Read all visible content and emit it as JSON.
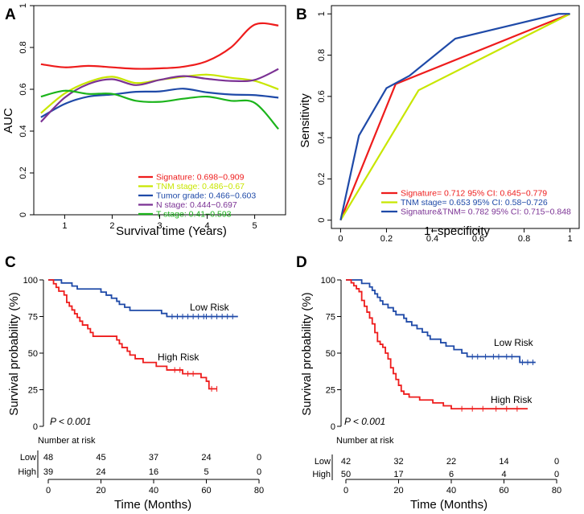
{
  "panels": {
    "A": {
      "letter": "A"
    },
    "B": {
      "letter": "B"
    },
    "C": {
      "letter": "C"
    },
    "D": {
      "letter": "D"
    }
  },
  "chart_data": [
    {
      "id": "A",
      "type": "line",
      "title": "",
      "xlabel": "Survival time (Years)",
      "ylabel": "AUC",
      "xlim": [
        0.35,
        5.65
      ],
      "ylim": [
        0.0,
        1.0
      ],
      "xticks": [
        1,
        2,
        3,
        4,
        5
      ],
      "yticks": [
        0.0,
        0.2,
        0.4,
        0.6,
        0.8,
        1.0
      ],
      "legend_position": "bottom-right",
      "x": [
        0.5,
        1.0,
        1.5,
        2.0,
        2.5,
        3.0,
        3.5,
        4.0,
        4.5,
        5.0,
        5.5
      ],
      "series": [
        {
          "name": "Signature",
          "legend": "Signature: 0.698−0.909",
          "color": "#ee1c1c",
          "values": [
            0.72,
            0.705,
            0.712,
            0.705,
            0.698,
            0.7,
            0.708,
            0.735,
            0.8,
            0.909,
            0.905
          ]
        },
        {
          "name": "TNM stage",
          "legend": "TNM stage: 0.486−0.67",
          "color": "#c8e600",
          "values": [
            0.486,
            0.58,
            0.635,
            0.66,
            0.63,
            0.645,
            0.66,
            0.67,
            0.655,
            0.64,
            0.6
          ]
        },
        {
          "name": "Tumor grade",
          "legend": "Tumor grade: 0.466−0.603",
          "color": "#1f4aa8",
          "values": [
            0.466,
            0.53,
            0.565,
            0.575,
            0.588,
            0.59,
            0.603,
            0.585,
            0.575,
            0.572,
            0.56
          ]
        },
        {
          "name": "N stage",
          "legend": "N stage: 0.444−0.697",
          "color": "#7b3294",
          "values": [
            0.444,
            0.56,
            0.625,
            0.648,
            0.62,
            0.645,
            0.663,
            0.65,
            0.64,
            0.645,
            0.697
          ]
        },
        {
          "name": "T stage",
          "legend": "T stage: 0.41−0.593",
          "color": "#1bb41b",
          "values": [
            0.565,
            0.593,
            0.578,
            0.578,
            0.545,
            0.54,
            0.555,
            0.565,
            0.545,
            0.535,
            0.41
          ]
        }
      ]
    },
    {
      "id": "B",
      "type": "line",
      "title": "",
      "xlabel": "1−specificity",
      "ylabel": "Sensitivity",
      "xlim": [
        -0.04,
        1.04
      ],
      "ylim": [
        -0.04,
        1.04
      ],
      "xticks": [
        0.0,
        0.2,
        0.4,
        0.6,
        0.8,
        1.0
      ],
      "yticks": [
        0.0,
        0.2,
        0.4,
        0.6,
        0.8,
        1.0
      ],
      "legend_position": "bottom-right",
      "series": [
        {
          "name": "Signature",
          "legend": "Signature= 0.712  95% CI: 0.645−0.779",
          "color": "#ee1c1c",
          "x": [
            0,
            0.24,
            1.0
          ],
          "y": [
            0,
            0.66,
            1.0
          ]
        },
        {
          "name": "TNM stage",
          "legend": "TNM stage= 0.653  95% CI: 0.58−0.726",
          "color": "#c8e600",
          "x": [
            0,
            0.34,
            1.0
          ],
          "y": [
            0,
            0.63,
            1.0
          ]
        },
        {
          "name": "Signature&TNM",
          "legend": "Signature&TNM= 0.782  95% CI: 0.715−0.848",
          "color": "#1f4aa8",
          "x": [
            0,
            0.08,
            0.2,
            0.3,
            0.5,
            0.95,
            1.0
          ],
          "y": [
            0,
            0.41,
            0.64,
            0.7,
            0.88,
            1.0,
            1.0
          ]
        }
      ],
      "legend_text_colors": [
        "#ee1c1c",
        "#1f4aa8",
        "#7b3294"
      ]
    },
    {
      "id": "C",
      "type": "line",
      "title": "",
      "xlabel": "Time (Months)",
      "ylabel": "Survival probability (%)",
      "xlim": [
        0,
        80
      ],
      "ylim": [
        0,
        100
      ],
      "xticks": [
        0,
        20,
        40,
        60,
        80
      ],
      "yticks": [
        0,
        25,
        50,
        75,
        100
      ],
      "pvalue": "P < 0.001",
      "series": [
        {
          "name": "Low Risk",
          "label": "Low Risk",
          "color": "#1f4aa8",
          "steps": [
            [
              0,
              100
            ],
            [
              5,
              97.9
            ],
            [
              9,
              95.8
            ],
            [
              11,
              93.8
            ],
            [
              20,
              91.7
            ],
            [
              22,
              89.6
            ],
            [
              24,
              87.5
            ],
            [
              26,
              85.4
            ],
            [
              27,
              83.3
            ],
            [
              29,
              81.3
            ],
            [
              31,
              79.2
            ],
            [
              43,
              77.1
            ],
            [
              45,
              75.0
            ],
            [
              72,
              75.0
            ]
          ],
          "censors": [
            47,
            49,
            51,
            53,
            55,
            57,
            59,
            60,
            62,
            64,
            66,
            68,
            70
          ]
        },
        {
          "name": "High Risk",
          "label": "High Risk",
          "color": "#ee1c1c",
          "steps": [
            [
              0,
              100
            ],
            [
              2,
              97.4
            ],
            [
              3,
              94.9
            ],
            [
              4,
              92.3
            ],
            [
              6,
              89.7
            ],
            [
              7,
              84.6
            ],
            [
              8,
              82.1
            ],
            [
              9,
              79.5
            ],
            [
              10,
              76.9
            ],
            [
              11,
              74.4
            ],
            [
              12,
              71.8
            ],
            [
              13,
              69.2
            ],
            [
              15,
              66.7
            ],
            [
              16,
              64.1
            ],
            [
              17,
              61.5
            ],
            [
              26,
              59.0
            ],
            [
              27,
              56.4
            ],
            [
              28,
              53.8
            ],
            [
              30,
              51.3
            ],
            [
              31,
              48.7
            ],
            [
              33,
              46.2
            ],
            [
              36,
              43.6
            ],
            [
              41,
              41.0
            ],
            [
              45,
              38.5
            ],
            [
              51,
              35.9
            ],
            [
              58,
              33.3
            ],
            [
              60,
              30.8
            ],
            [
              61,
              25.6
            ],
            [
              64,
              25.6
            ]
          ],
          "censors": [
            48,
            50,
            53,
            55,
            62,
            64
          ]
        }
      ],
      "risk_table": {
        "title": "Number at risk",
        "groups": [
          "Low",
          "High"
        ],
        "times": [
          0,
          20,
          40,
          60,
          80
        ],
        "counts": [
          [
            48,
            45,
            37,
            24,
            0
          ],
          [
            39,
            24,
            16,
            5,
            0
          ]
        ]
      }
    },
    {
      "id": "D",
      "type": "line",
      "title": "",
      "xlabel": "Time (Months)",
      "ylabel": "Survival probability (%)",
      "xlim": [
        0,
        80
      ],
      "ylim": [
        0,
        100
      ],
      "xticks": [
        0,
        20,
        40,
        60,
        80
      ],
      "yticks": [
        0,
        25,
        50,
        75,
        100
      ],
      "pvalue": "P < 0.001",
      "series": [
        {
          "name": "Low Risk",
          "label": "Low Risk",
          "color": "#1f4aa8",
          "steps": [
            [
              0,
              100
            ],
            [
              6,
              97.6
            ],
            [
              9,
              95.2
            ],
            [
              10,
              92.9
            ],
            [
              11,
              90.5
            ],
            [
              12,
              88.1
            ],
            [
              13,
              85.7
            ],
            [
              14,
              83.3
            ],
            [
              16,
              81.0
            ],
            [
              18,
              78.6
            ],
            [
              19,
              76.2
            ],
            [
              22,
              73.8
            ],
            [
              23,
              71.4
            ],
            [
              25,
              69.0
            ],
            [
              27,
              66.7
            ],
            [
              29,
              64.3
            ],
            [
              31,
              61.9
            ],
            [
              32,
              59.5
            ],
            [
              36,
              57.1
            ],
            [
              38,
              54.8
            ],
            [
              41,
              52.4
            ],
            [
              44,
              50.0
            ],
            [
              46,
              47.6
            ],
            [
              64,
              47.6
            ],
            [
              66,
              43.7
            ],
            [
              72,
              43.7
            ]
          ],
          "censors": [
            48,
            50,
            53,
            56,
            58,
            61,
            63,
            67,
            69,
            71
          ]
        },
        {
          "name": "High Risk",
          "label": "High Risk",
          "color": "#ee1c1c",
          "steps": [
            [
              0,
              100
            ],
            [
              2,
              98
            ],
            [
              3,
              96
            ],
            [
              4,
              94
            ],
            [
              5,
              92
            ],
            [
              6,
              86
            ],
            [
              7,
              82
            ],
            [
              8,
              78
            ],
            [
              9,
              74
            ],
            [
              10,
              70
            ],
            [
              11,
              64
            ],
            [
              12,
              58
            ],
            [
              13,
              56
            ],
            [
              14,
              54
            ],
            [
              15,
              50
            ],
            [
              16,
              46
            ],
            [
              17,
              40
            ],
            [
              18,
              36
            ],
            [
              19,
              32
            ],
            [
              20,
              28
            ],
            [
              21,
              24
            ],
            [
              22,
              22
            ],
            [
              24,
              20
            ],
            [
              28,
              18
            ],
            [
              33,
              16
            ],
            [
              37,
              14
            ],
            [
              40,
              12
            ],
            [
              69,
              12
            ]
          ],
          "censors": [
            44,
            48,
            52,
            57,
            61,
            65
          ]
        }
      ],
      "risk_table": {
        "title": "Number at risk",
        "groups": [
          "Low",
          "High"
        ],
        "times": [
          0,
          20,
          40,
          60,
          80
        ],
        "counts": [
          [
            42,
            32,
            22,
            14,
            0
          ],
          [
            50,
            17,
            6,
            4,
            0
          ]
        ]
      }
    }
  ]
}
